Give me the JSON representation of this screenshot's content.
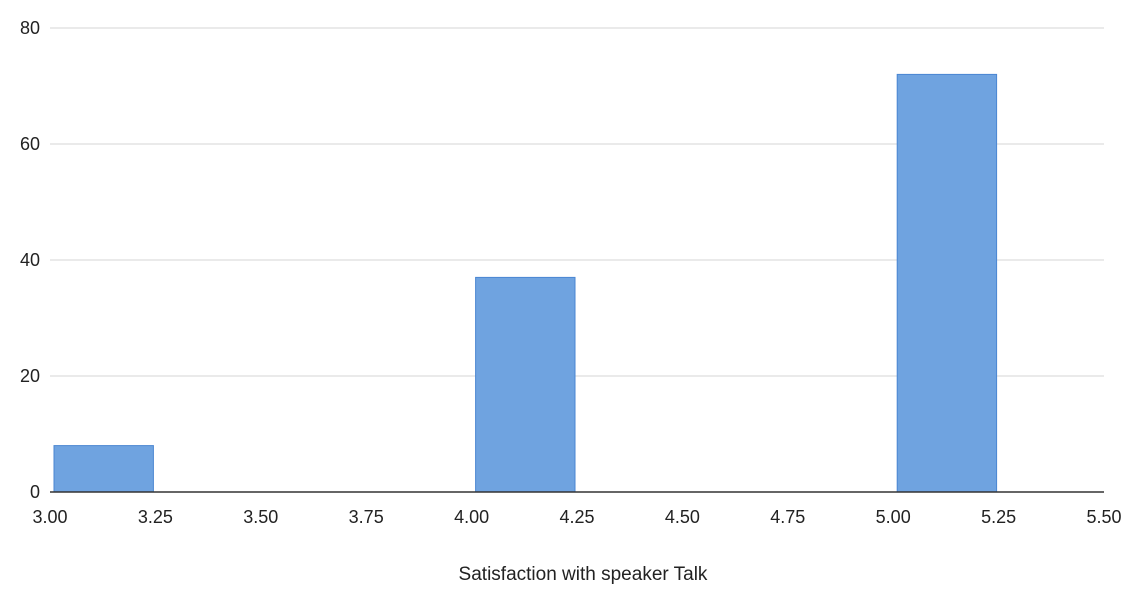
{
  "chart_data": {
    "type": "bar",
    "bins": [
      {
        "x0": 3.0,
        "x1": 3.25,
        "value": 8
      },
      {
        "x0": 3.25,
        "x1": 3.5,
        "value": 0
      },
      {
        "x0": 3.5,
        "x1": 3.75,
        "value": 0
      },
      {
        "x0": 3.75,
        "x1": 4.0,
        "value": 0
      },
      {
        "x0": 4.0,
        "x1": 4.25,
        "value": 37
      },
      {
        "x0": 4.25,
        "x1": 4.5,
        "value": 0
      },
      {
        "x0": 4.5,
        "x1": 4.75,
        "value": 0
      },
      {
        "x0": 4.75,
        "x1": 5.0,
        "value": 0
      },
      {
        "x0": 5.0,
        "x1": 5.25,
        "value": 72
      }
    ],
    "title": "",
    "xlabel": "Satisfaction with speaker Talk",
    "ylabel": "",
    "xlim": [
      3.0,
      5.5
    ],
    "ylim": [
      0,
      80
    ],
    "x_ticks": [
      "3.00",
      "3.25",
      "3.50",
      "3.75",
      "4.00",
      "4.25",
      "4.50",
      "4.75",
      "5.00",
      "5.25",
      "5.50"
    ],
    "y_ticks": [
      "0",
      "20",
      "40",
      "60",
      "80"
    ],
    "grid": "horizontal",
    "legend": "none",
    "bar_color": "#6fa3e0",
    "bar_edge_color": "#4a86d2",
    "axis_color": "#333333",
    "grid_color": "#d6d6d6"
  }
}
